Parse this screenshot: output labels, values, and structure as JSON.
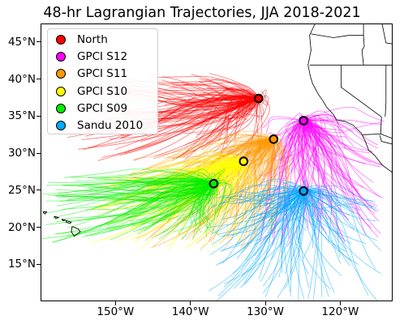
{
  "title": "48-hr Lagrangian Trajectories, JJA 2018-2021",
  "map": {
    "lon_range": [
      -160,
      -113
    ],
    "lat_range": [
      10,
      47.5
    ],
    "lat_ticks": [
      {
        "value": 45,
        "label": "45°N"
      },
      {
        "value": 40,
        "label": "40°N"
      },
      {
        "value": 35,
        "label": "35°N"
      },
      {
        "value": 30,
        "label": "30°N"
      },
      {
        "value": 25,
        "label": "25°N"
      },
      {
        "value": 20,
        "label": "20°N"
      },
      {
        "value": 15,
        "label": "15°N"
      }
    ],
    "lon_ticks": [
      {
        "value": -150,
        "label": "150°W"
      },
      {
        "value": -140,
        "label": "140°W"
      },
      {
        "value": -130,
        "label": "130°W"
      },
      {
        "value": -120,
        "label": "120°W"
      }
    ],
    "colors": {
      "coastline": "#000000",
      "borders": "#000000",
      "background": "#ffffff"
    }
  },
  "legend": {
    "placement": "top-left",
    "items": [
      {
        "label": "North",
        "color": "#ff0000"
      },
      {
        "label": "GPCI S12",
        "color": "#ff00ff"
      },
      {
        "label": "GPCI S11",
        "color": "#ff9900"
      },
      {
        "label": "GPCI S10",
        "color": "#ffff00"
      },
      {
        "label": "GPCI S09",
        "color": "#00ee00"
      },
      {
        "label": "Sandu 2010",
        "color": "#00aaff"
      }
    ]
  },
  "trajectories": [
    {
      "name": "North",
      "color": "#ff0000",
      "end": [
        -131,
        37.5
      ],
      "start_lon": [
        -157,
        -130
      ],
      "start_lat": [
        29,
        41
      ],
      "count": 140
    },
    {
      "name": "GPCI S12",
      "color": "#ff00ff",
      "end": [
        -125,
        34.5
      ],
      "start_lon": [
        -131,
        -114
      ],
      "start_lat": [
        17,
        35
      ],
      "count": 130
    },
    {
      "name": "GPCI S11",
      "color": "#ff9900",
      "end": [
        -129,
        32
      ],
      "start_lon": [
        -149,
        -128
      ],
      "start_lat": [
        17,
        30
      ],
      "count": 130
    },
    {
      "name": "GPCI S10",
      "color": "#ffff00",
      "end": [
        -133,
        29
      ],
      "start_lon": [
        -154,
        -133
      ],
      "start_lat": [
        17,
        28
      ],
      "count": 130
    },
    {
      "name": "GPCI S09",
      "color": "#00ee00",
      "end": [
        -137,
        26
      ],
      "start_lon": [
        -160,
        -136
      ],
      "start_lat": [
        18,
        27
      ],
      "count": 160
    },
    {
      "name": "Sandu 2010",
      "color": "#00aaff",
      "end": [
        -125,
        25
      ],
      "start_lon": [
        -138,
        -114
      ],
      "start_lat": [
        10,
        25
      ],
      "count": 150
    }
  ]
}
